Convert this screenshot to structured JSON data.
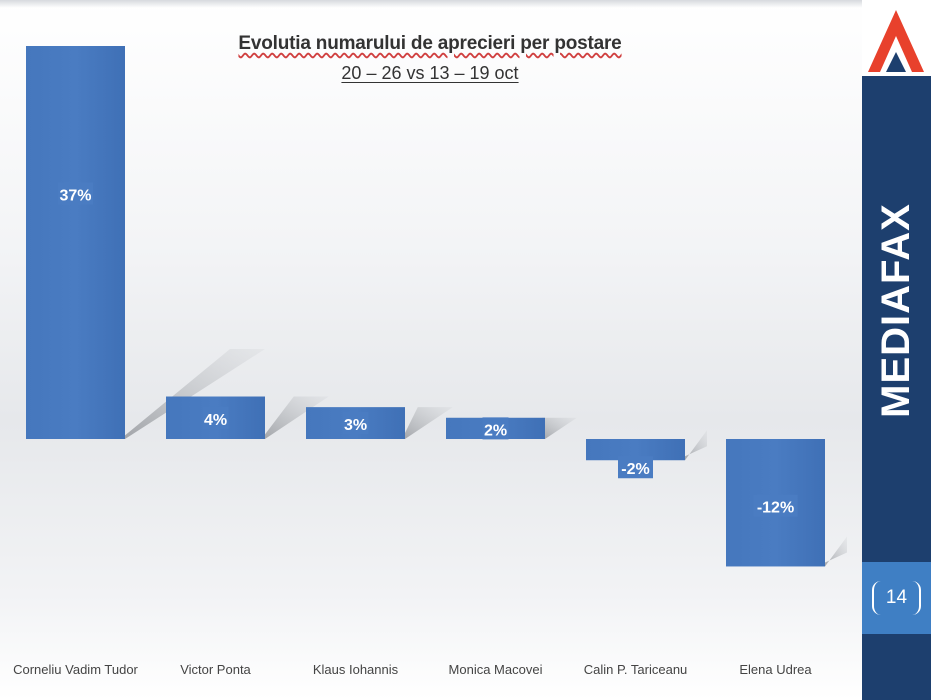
{
  "chart_data": {
    "type": "bar",
    "title": "Evolutia numarului de aprecieri per postare",
    "subtitle": "20 – 26 vs 13 – 19 oct",
    "categories": [
      "Corneliu Vadim Tudor",
      "Victor Ponta",
      "Klaus Iohannis",
      "Monica Macovei",
      "Calin P. Tariceanu",
      "Elena Udrea"
    ],
    "values": [
      37,
      4,
      3,
      2,
      -2,
      -12
    ],
    "data_labels": [
      "37%",
      "4%",
      "3%",
      "2%",
      "-2%",
      "-12%"
    ],
    "unit": "%",
    "ylim": [
      -14,
      40
    ],
    "grid": false,
    "legend": "none",
    "bar_color": "#4a7cc2"
  },
  "sidebar": {
    "brand": "MEDIAFAX",
    "page_number": "14",
    "color": "#1d3f6e",
    "accent": "#e8412c"
  }
}
